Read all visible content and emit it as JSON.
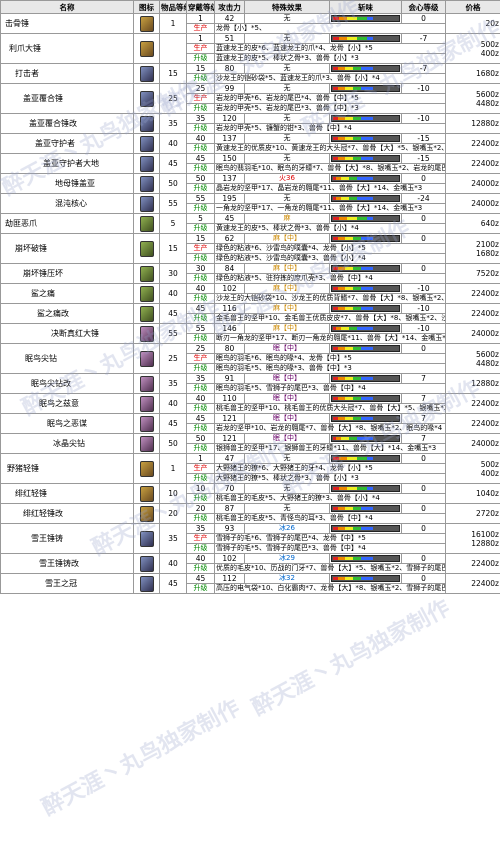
{
  "headers": [
    "名称",
    "图标",
    "物品等级",
    "穿戴等级",
    "攻击力",
    "特殊效果",
    "斩味",
    "会心等级",
    "价格"
  ],
  "colors": {
    "red": "#d22",
    "orange": "#e80",
    "yellow": "#ee2",
    "green": "#3b3",
    "blue": "#36f",
    "white": "#fff",
    "purple": "#a3c"
  },
  "watermark": "醉天涯丶丸鸟独家制作",
  "rows": [
    {
      "name": "击骨锤",
      "lvl": "1",
      "wear": "1",
      "atk": "42",
      "eff": "无",
      "crit": "0",
      "price": "20z",
      "sub": [
        {
          "t": "生产",
          "mat": "龙骨【小】*5、",
          "cls": "sp"
        }
      ],
      "sharp": [
        0.35,
        0.5,
        0.15
      ],
      "icon": "a"
    },
    {
      "name": "利爪大锤",
      "lvl": "",
      "wear": "1",
      "atk": "51",
      "eff": "无",
      "crit": "-7",
      "price": "500z\n400z",
      "sub": [
        {
          "t": "生产",
          "mat": "蓝速龙王的皮*6、蓝速龙王的爪*4、龙骨【小】*5",
          "cls": "sp"
        },
        {
          "t": "升级",
          "mat": "蓝速龙王的皮*5、棒状之骨*3、兽骨【小】*3",
          "cls": "up"
        }
      ],
      "sharp": [
        0.35,
        0.5,
        0.15
      ],
      "icon": "a"
    },
    {
      "name": "打击者",
      "lvl": "15",
      "wear": "15",
      "atk": "80",
      "eff": "无",
      "crit": "-7",
      "price": "1680z",
      "sub": [
        {
          "t": "升级",
          "mat": "沙龙王的铠砂袋*5、蓝速龙王的爪*3、兽骨【小】*4",
          "cls": "up"
        }
      ],
      "sharp": [
        0.3,
        0.4,
        0.3
      ],
      "icon": "b"
    },
    {
      "name": "盖亚覆合锤",
      "lvl": "25",
      "wear": "25",
      "atk": "99",
      "eff": "无",
      "crit": "-10",
      "price": "5600z\n4480z",
      "sub": [
        {
          "t": "生产",
          "mat": "岩龙的甲壳*6、岩龙的尾巴*4、兽骨【中】*5",
          "cls": "sp"
        },
        {
          "t": "升级",
          "mat": "岩龙的甲壳*5、岩龙的尾巴*3、兽骨【中】*3",
          "cls": "up"
        }
      ],
      "sharp": [
        0.3,
        0.4,
        0.3
      ],
      "icon": "b"
    },
    {
      "name": "盖亚覆合锤改",
      "lvl": "35",
      "wear": "35",
      "atk": "120",
      "eff": "无",
      "crit": "-10",
      "price": "12880z",
      "sub": [
        {
          "t": "升级",
          "mat": "岩龙的甲壳*5、镰蟹的钳*3、兽骨【中】*4",
          "cls": "up"
        }
      ],
      "sharp": [
        0.3,
        0.4,
        0.3
      ],
      "icon": "b"
    },
    {
      "name": "盖亚守护者",
      "lvl": "40",
      "wear": "40",
      "atk": "137",
      "eff": "无",
      "crit": "-15",
      "price": "22400z",
      "sub": [
        {
          "t": "升级",
          "mat": "黄速龙王的优质皮*10、黄速龙王的大头冠*7、兽骨【大】*5、银嘴玉*2、岩龙的尾巴*4",
          "cls": "up"
        }
      ],
      "sharp": [
        0.3,
        0.4,
        0.3
      ],
      "icon": "b"
    },
    {
      "name": "盖亚守护者大地",
      "lvl": "45",
      "wear": "45",
      "atk": "150",
      "eff": "无",
      "crit": "-15",
      "price": "22400z",
      "sub": [
        {
          "t": "升级",
          "mat": "眠鸟的翡羽毛*10、眠鸟的牙蠓*7、兽骨【大】*8、银嘴玉*2、岩龙的尾巴*4",
          "cls": "up"
        }
      ],
      "sharp": [
        0.3,
        0.4,
        0.3
      ],
      "icon": "b"
    },
    {
      "name": "地母锤盖亚",
      "lvl": "50",
      "wear": "50",
      "atk": "137",
      "eff": "火36",
      "ecls": "fire",
      "crit": "0",
      "price": "24000z",
      "sub": [
        {
          "t": "升级",
          "mat": "晶岩龙的坚甲*17、晶岩龙的翱尾*11、兽骨【大】*14、金嘴玉*3",
          "cls": "up"
        }
      ],
      "sharp": [
        0.2,
        0.4,
        0.4
      ],
      "icon": "b"
    },
    {
      "name": "混沌核心",
      "lvl": "55",
      "wear": "55",
      "atk": "195",
      "eff": "无",
      "crit": "-24",
      "price": "24000z",
      "sub": [
        {
          "t": "升级",
          "mat": "一角龙的坚甲*17、一角龙的翱尾*11、兽骨【大】*14、金嘴玉*3",
          "cls": "up"
        }
      ],
      "sharp": [
        0.2,
        0.4,
        0.4
      ],
      "icon": "b"
    },
    {
      "name": "劫匪恶爪",
      "lvl": "5",
      "wear": "5",
      "atk": "45",
      "eff": "麻",
      "ecls": "para",
      "crit": "0",
      "price": "640z",
      "sub": [
        {
          "t": "升级",
          "mat": "黄速龙王的皮*5、棒状之骨*3、兽骨【小】*4",
          "cls": "up"
        }
      ],
      "sharp": [
        0.35,
        0.5,
        0.15
      ],
      "icon": "g"
    },
    {
      "name": "崩坏破锤",
      "lvl": "15",
      "wear": "15",
      "atk": "62",
      "eff": "麻【中】",
      "ecls": "para",
      "crit": "0",
      "price": "2100z\n1680z",
      "sub": [
        {
          "t": "生产",
          "mat": "绿色的粘液*6、沙雷鸟的噗囊*4、龙骨【小】*5",
          "cls": "sp"
        },
        {
          "t": "升级",
          "mat": "绿色的粘液*5、沙雷鸟的噗囊*3、兽骨【小】*4",
          "cls": "up"
        }
      ],
      "sharp": [
        0.3,
        0.4,
        0.3
      ],
      "icon": "g"
    },
    {
      "name": "崩坏锤压坏",
      "lvl": "30",
      "wear": "30",
      "atk": "84",
      "eff": "麻【中】",
      "ecls": "para",
      "crit": "0",
      "price": "7520z",
      "sub": [
        {
          "t": "升级",
          "mat": "绿色的粘液*5、驻狩拣的庶爪壳*3、兽骨【中】*4",
          "cls": "up"
        }
      ],
      "sharp": [
        0.3,
        0.4,
        0.3
      ],
      "icon": "g"
    },
    {
      "name": "鲨之痛",
      "lvl": "40",
      "wear": "40",
      "atk": "102",
      "eff": "麻【中】",
      "ecls": "para",
      "crit": "-10",
      "price": "22400z",
      "sub": [
        {
          "t": "升级",
          "mat": "沙龙王的大铠砂袋*10、沙龙王的优质背鳍*7、兽骨【大】*8、银嘴玉*2、沙雷鸟的噗囊*4",
          "cls": "up"
        }
      ],
      "sharp": [
        0.3,
        0.4,
        0.3
      ],
      "icon": "g"
    },
    {
      "name": "鲨之痛改",
      "lvl": "45",
      "wear": "45",
      "atk": "116",
      "eff": "麻【中】",
      "ecls": "para",
      "crit": "-10",
      "price": "22400z",
      "sub": [
        {
          "t": "升级",
          "mat": "金毛兽王的坚甲*10、金毛兽王优质皮皮*7、兽骨【大】*8、银嘴玉*2、沙雷鸟的噗囊*4",
          "cls": "up"
        }
      ],
      "sharp": [
        0.3,
        0.4,
        0.3
      ],
      "icon": "g"
    },
    {
      "name": "决断真红大锤",
      "lvl": "55",
      "wear": "55",
      "atk": "146",
      "eff": "麻【中】",
      "ecls": "para",
      "crit": "-10",
      "price": "24000z",
      "sub": [
        {
          "t": "升级",
          "mat": "断刃一角龙的坚甲*17、断刃一角龙的翱尾*11、兽骨【大】*14、金嘴玉*3",
          "cls": "up"
        }
      ],
      "sharp": [
        0.2,
        0.4,
        0.4
      ],
      "icon": "p"
    },
    {
      "name": "眠鸟尖钻",
      "lvl": "25",
      "wear": "25",
      "atk": "80",
      "eff": "眠【中】",
      "ecls": "sleep",
      "crit": "0",
      "price": "5600z\n4480z",
      "sub": [
        {
          "t": "生产",
          "mat": "眠鸟的羽毛*6、眠鸟的喙*4、龙骨【中】*5",
          "cls": "sp"
        },
        {
          "t": "升级",
          "mat": "眠鸟的羽毛*5、眠鸟的喙*3、兽骨【中】*3",
          "cls": "up"
        }
      ],
      "sharp": [
        0.3,
        0.4,
        0.3
      ],
      "icon": "p"
    },
    {
      "name": "眠鸟尖钻改",
      "lvl": "35",
      "wear": "35",
      "atk": "91",
      "eff": "眠【中】",
      "ecls": "sleep",
      "crit": "7",
      "price": "12880z",
      "sub": [
        {
          "t": "升级",
          "mat": "眠鸟的羽毛*5、雪狮子的尾巴*3、兽骨【中】*4",
          "cls": "up"
        }
      ],
      "sharp": [
        0.3,
        0.4,
        0.3
      ],
      "icon": "p"
    },
    {
      "name": "眠鸟之兹意",
      "lvl": "40",
      "wear": "40",
      "atk": "110",
      "eff": "眠【中】",
      "ecls": "sleep",
      "crit": "7",
      "price": "22400z",
      "sub": [
        {
          "t": "升级",
          "mat": "桃毛兽王的坚甲*10、桃毛兽王的优质大头冠*7、兽骨【大】*5、银嘴玉*2、眠鸟的喙*4",
          "cls": "up"
        }
      ],
      "sharp": [
        0.3,
        0.4,
        0.3
      ],
      "icon": "p"
    },
    {
      "name": "眠鸟之恶谋",
      "lvl": "45",
      "wear": "45",
      "atk": "121",
      "eff": "眠【中】",
      "ecls": "sleep",
      "crit": "7",
      "price": "22400z",
      "sub": [
        {
          "t": "升级",
          "mat": "岩龙的坚甲*10、岩龙的翱尾*7、兽骨【大】*8、银嘴玉*2、眠鸟的喙*4",
          "cls": "up"
        }
      ],
      "sharp": [
        0.3,
        0.4,
        0.3
      ],
      "icon": "p"
    },
    {
      "name": "冰晶尖钻",
      "lvl": "50",
      "wear": "50",
      "atk": "121",
      "eff": "眠【中】",
      "ecls": "sleep",
      "crit": "7",
      "price": "24000z",
      "sub": [
        {
          "t": "升级",
          "mat": "银狮兽王的坚甲*17、银狮兽王的牙蠓*11、兽骨【大】*14、金嘴玉*3",
          "cls": "up"
        }
      ],
      "sharp": [
        0.2,
        0.4,
        0.4
      ],
      "icon": "p"
    },
    {
      "name": "野猪轻锤",
      "lvl": "1",
      "wear": "1",
      "atk": "47",
      "eff": "无",
      "crit": "0",
      "price": "500z\n400z",
      "sub": [
        {
          "t": "生产",
          "mat": "大野猪王的獠*6、大野猪王的牙*4、龙骨【小】*5",
          "cls": "sp"
        },
        {
          "t": "升级",
          "mat": "大野猪王的獠*5、棒状之骨*3、兽骨【小】*3",
          "cls": "up"
        }
      ],
      "sharp": [
        0.35,
        0.5,
        0.15
      ],
      "icon": "a"
    },
    {
      "name": "绯红轻锤",
      "lvl": "10",
      "wear": "10",
      "atk": "70",
      "eff": "无",
      "crit": "0",
      "price": "1040z",
      "sub": [
        {
          "t": "升级",
          "mat": "桃毛兽王的毛皮*5、大野猪王的獠*3、兽骨【小】*4",
          "cls": "up"
        }
      ],
      "sharp": [
        0.35,
        0.5,
        0.15
      ],
      "icon": "a"
    },
    {
      "name": "绯红轻锤改",
      "lvl": "20",
      "wear": "20",
      "atk": "87",
      "eff": "无",
      "crit": "0",
      "price": "2720z",
      "sub": [
        {
          "t": "升级",
          "mat": "桃毛兽王的毛皮*5、青怪鸟的耳*3、兽骨【中】*4",
          "cls": "up"
        }
      ],
      "sharp": [
        0.3,
        0.4,
        0.3
      ],
      "icon": "a"
    },
    {
      "name": "雪王锤铸",
      "lvl": "35",
      "wear": "35",
      "atk": "93",
      "eff": "冰26",
      "ecls": "ice",
      "crit": "0",
      "price": "16100z\n12880z",
      "sub": [
        {
          "t": "生产",
          "mat": "雪狮子的毛*6、雪狮子的尾巴*4、龙骨【中】*5",
          "cls": "sp"
        },
        {
          "t": "升级",
          "mat": "雪狮子的毛*5、雪狮子的尾巴*3、兽骨【中】*4",
          "cls": "up"
        }
      ],
      "sharp": [
        0.3,
        0.4,
        0.3
      ],
      "icon": "b"
    },
    {
      "name": "雪王锤铸改",
      "lvl": "40",
      "wear": "40",
      "atk": "102",
      "eff": "冰29",
      "ecls": "ice",
      "crit": "0",
      "price": "22400z",
      "sub": [
        {
          "t": "升级",
          "mat": "优质的毛皮*10、历战的门牙*7、兽骨【大】*5、银嘴玉*2、雪狮子的尾巴*4",
          "cls": "up"
        }
      ],
      "sharp": [
        0.3,
        0.4,
        0.3
      ],
      "icon": "b"
    },
    {
      "name": "雪王之冠",
      "lvl": "45",
      "wear": "45",
      "atk": "112",
      "eff": "冰32",
      "ecls": "ice",
      "crit": "0",
      "price": "22400z",
      "sub": [
        {
          "t": "升级",
          "mat": "高压的电气袋*10、白化霸肉*7、龙骨【大】*8、银嘴玉*2、雪狮子的尾巴*4",
          "cls": "up"
        }
      ],
      "sharp": [
        0.3,
        0.4,
        0.3
      ],
      "icon": "b"
    }
  ]
}
